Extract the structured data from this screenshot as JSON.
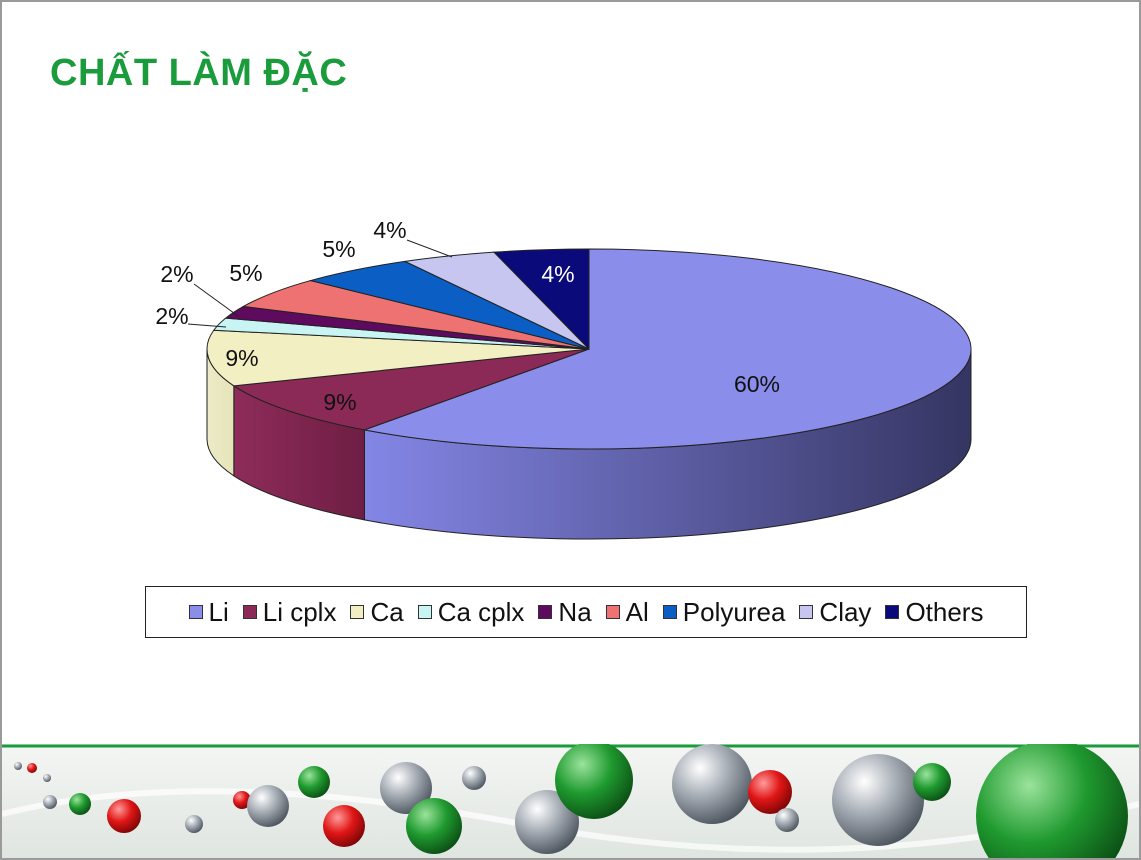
{
  "slide": {
    "title": "CHẤT LÀM ĐẶC"
  },
  "chart_data": {
    "type": "pie",
    "style": "3d",
    "title": "",
    "legend_position": "bottom",
    "unit": "%",
    "slices": [
      {
        "label": "Li",
        "value": 60,
        "display": "60%",
        "color": "#8b8dea"
      },
      {
        "label": "Li cplx",
        "value": 9,
        "display": "9%",
        "color": "#8b2a56"
      },
      {
        "label": "Ca",
        "value": 9,
        "display": "9%",
        "color": "#f2efc3"
      },
      {
        "label": "Ca cplx",
        "value": 2,
        "display": "2%",
        "color": "#c8f4f4"
      },
      {
        "label": "Na",
        "value": 2,
        "display": "2%",
        "color": "#5e0a5e"
      },
      {
        "label": "Al",
        "value": 5,
        "display": "5%",
        "color": "#ee7272"
      },
      {
        "label": "Polyurea",
        "value": 5,
        "display": "5%",
        "color": "#0a5ec4"
      },
      {
        "label": "Clay",
        "value": 4,
        "display": "4%",
        "color": "#c6c6f0"
      },
      {
        "label": "Others",
        "value": 4,
        "display": "4%",
        "color": "#0a0a7a"
      }
    ]
  },
  "theme": {
    "title_color": "#1a9c3c",
    "footer_line_color": "#1a9c3c"
  }
}
